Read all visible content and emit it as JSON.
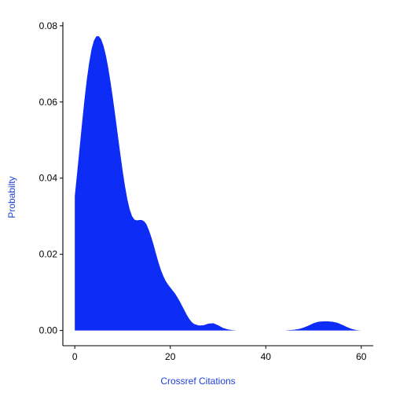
{
  "chart_data": {
    "type": "area",
    "title": "",
    "xlabel": "Crossref Citations",
    "ylabel": "Probabilty",
    "xlim": [
      -2.5,
      62.5
    ],
    "ylim": [
      -0.004,
      0.081
    ],
    "x_ticks": [
      0,
      20,
      40,
      60
    ],
    "y_ticks": [
      0.0,
      0.02,
      0.04,
      0.06,
      0.08
    ],
    "x_tick_labels": [
      "0",
      "20",
      "40",
      "60"
    ],
    "y_tick_labels": [
      "0.00",
      "0.02",
      "0.04",
      "0.06",
      "0.08"
    ],
    "grid": false,
    "legend": "none",
    "fill_color": "#0d2cf5",
    "label_color": "#1f3fd9",
    "series": [
      {
        "x": [
          0,
          0.5,
          1,
          1.5,
          2,
          2.5,
          3,
          3.5,
          4,
          4.5,
          5,
          5.5,
          6,
          6.5,
          7,
          7.5,
          8,
          8.5,
          9,
          9.5,
          10,
          10.5,
          11,
          11.5,
          12,
          12.5,
          13,
          13.5,
          14,
          14.5,
          15,
          15.5,
          16,
          16.5,
          17,
          17.5,
          18,
          18.5,
          19,
          19.5,
          20,
          20.5,
          21,
          21.5,
          22,
          22.5,
          23,
          23.5,
          24,
          24.5,
          25,
          26,
          27,
          28,
          29,
          30,
          31,
          32,
          33,
          34,
          36,
          38,
          40,
          42,
          44,
          45,
          46,
          47,
          48,
          49,
          50,
          51,
          52,
          53,
          54,
          55,
          56,
          57,
          58,
          59,
          60
        ],
        "y": [
          0.0353,
          0.0415,
          0.0478,
          0.0542,
          0.0603,
          0.0657,
          0.0702,
          0.0738,
          0.0761,
          0.0772,
          0.0773,
          0.0765,
          0.0748,
          0.0723,
          0.069,
          0.0651,
          0.0608,
          0.0562,
          0.0514,
          0.0467,
          0.0421,
          0.038,
          0.0345,
          0.0318,
          0.03,
          0.0291,
          0.0289,
          0.029,
          0.029,
          0.0287,
          0.0279,
          0.0264,
          0.0246,
          0.0225,
          0.0202,
          0.018,
          0.016,
          0.0144,
          0.0131,
          0.0121,
          0.0113,
          0.0105,
          0.0097,
          0.0087,
          0.0076,
          0.0064,
          0.0052,
          0.004,
          0.003,
          0.0022,
          0.0017,
          0.0013,
          0.0014,
          0.0018,
          0.0019,
          0.0014,
          0.0007,
          0.0003,
          0.0001,
          0.0,
          0.0,
          0.0,
          0.0,
          0.0,
          0.0,
          0.0001,
          0.0002,
          0.0004,
          0.0008,
          0.0013,
          0.0019,
          0.0023,
          0.0024,
          0.0024,
          0.0023,
          0.002,
          0.0015,
          0.0009,
          0.0004,
          0.0001,
          0.0
        ]
      }
    ]
  }
}
